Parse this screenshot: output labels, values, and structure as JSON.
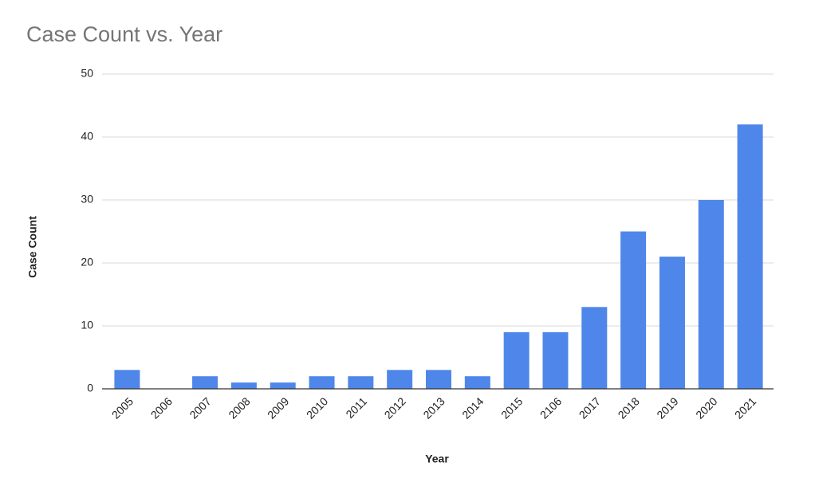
{
  "chart_data": {
    "type": "bar",
    "title": "Case Count vs. Year",
    "x_label": "Year",
    "y_label": "Case Count",
    "categories": [
      "2005",
      "2006",
      "2007",
      "2008",
      "2009",
      "2010",
      "2011",
      "2012",
      "2013",
      "2014",
      "2015",
      "2106",
      "2017",
      "2018",
      "2019",
      "2020",
      "2021"
    ],
    "values": [
      3,
      0,
      2,
      1,
      1,
      2,
      2,
      3,
      3,
      2,
      9,
      9,
      13,
      25,
      21,
      30,
      42
    ],
    "color": "#4f86ea",
    "ylim": [
      0,
      50
    ],
    "yticks": [
      0,
      10,
      20,
      30,
      40,
      50
    ],
    "grid": true
  }
}
